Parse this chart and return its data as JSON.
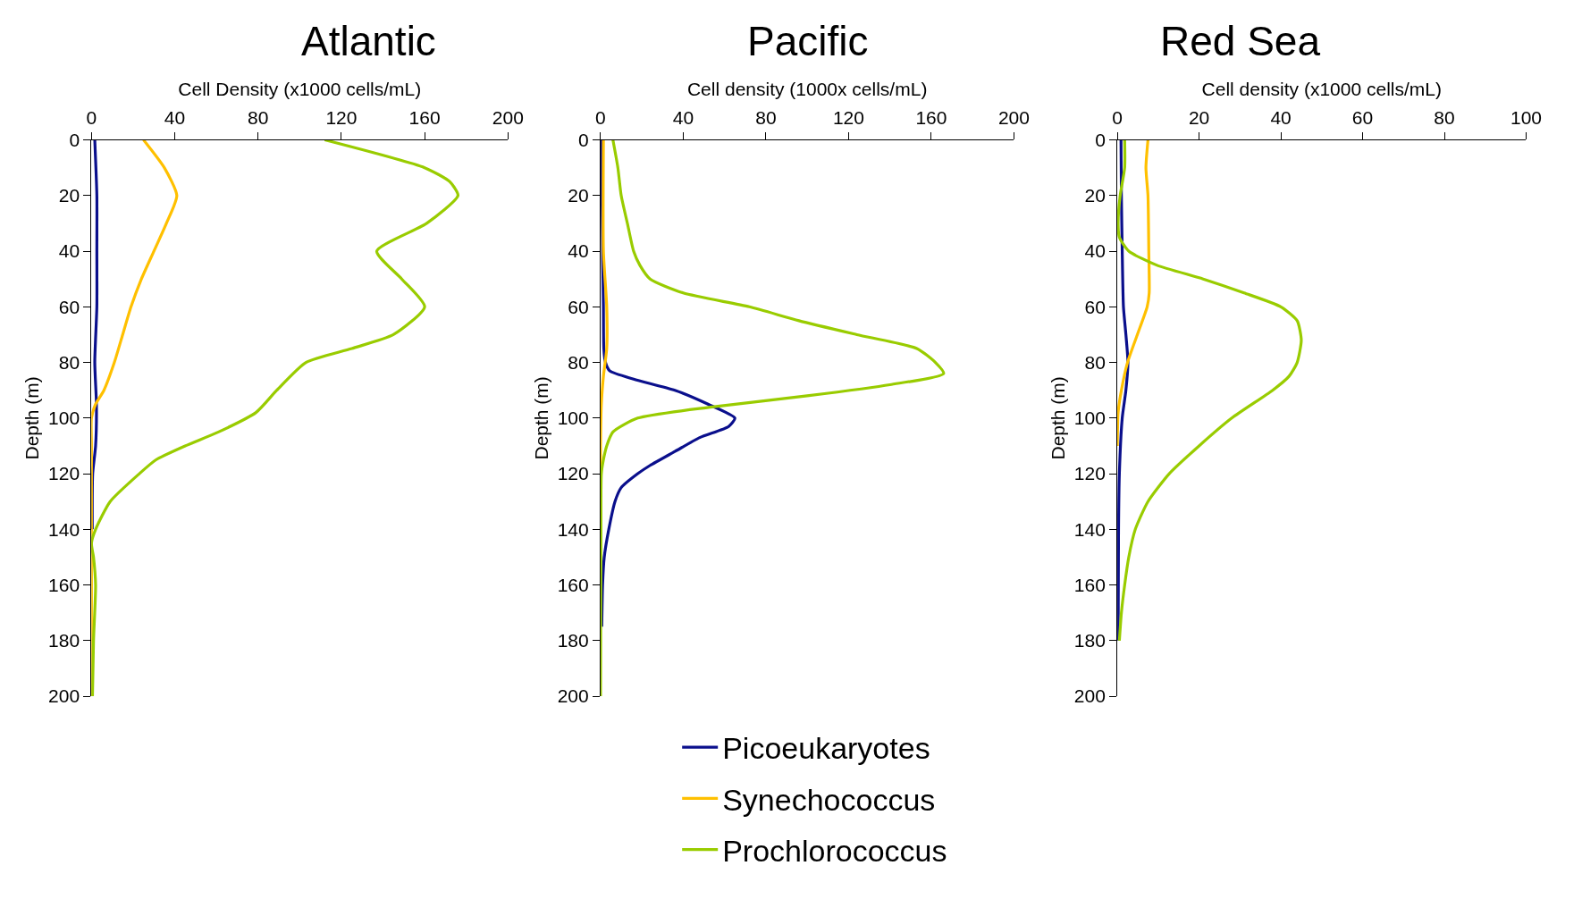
{
  "chart_data": [
    {
      "type": "line",
      "title": "Atlantic",
      "xlabel": "Cell Density (x1000 cells/mL)",
      "ylabel": "Depth (m)",
      "xlim": [
        0,
        200
      ],
      "xticks": [
        0,
        40,
        80,
        120,
        160,
        200
      ],
      "ylim": [
        200,
        0
      ],
      "yticks": [
        0,
        20,
        40,
        60,
        80,
        100,
        120,
        140,
        160,
        180,
        200
      ],
      "legend": "bottom right",
      "series": [
        {
          "name": "Picoeukaryotes",
          "color": "#0a0f8c",
          "x": [
            1.6,
            2.6,
            2.6,
            2.6,
            1.6,
            2.4,
            2,
            0.6,
            0.4
          ],
          "values": [
            0,
            20,
            40,
            60,
            80,
            95,
            110,
            120,
            140
          ]
        },
        {
          "name": "Synechococcus",
          "color": "#ffc000",
          "x": [
            25,
            35,
            41,
            36,
            30,
            24,
            19,
            15,
            11,
            6,
            2,
            0,
            0,
            0,
            0,
            0,
            0
          ],
          "values": [
            0,
            10,
            20,
            30,
            40,
            50,
            60,
            70,
            80,
            90,
            95,
            100,
            110,
            140,
            160,
            180,
            200
          ]
        },
        {
          "name": "Prochlorococcus",
          "color": "#99cc00",
          "x": [
            112,
            160,
            172,
            176,
            161,
            137,
            149,
            160,
            145,
            125,
            103,
            89,
            79,
            61,
            45,
            31,
            23,
            9,
            2,
            0,
            1,
            2,
            1,
            0.5
          ],
          "values": [
            0,
            10,
            15,
            20,
            30,
            40,
            50,
            60,
            70,
            75,
            80,
            90,
            98,
            105,
            110,
            115,
            120,
            130,
            140,
            145,
            150,
            160,
            180,
            200
          ]
        }
      ]
    },
    {
      "type": "line",
      "title": "Pacific",
      "xlabel": "Cell density (1000x cells/mL)",
      "ylabel": "Depth (m)",
      "xlim": [
        0,
        200
      ],
      "xticks": [
        0,
        40,
        80,
        120,
        160,
        200
      ],
      "ylim": [
        200,
        0
      ],
      "yticks": [
        0,
        20,
        40,
        60,
        80,
        100,
        120,
        140,
        160,
        180,
        200
      ],
      "series": [
        {
          "color": "#0a0f8c",
          "x": [
            0.4,
            1,
            1.4,
            1.6,
            2.4,
            4.4,
            16,
            36,
            52,
            65,
            62,
            48,
            36,
            24,
            18,
            10,
            7,
            4,
            1.8,
            1,
            0.6
          ],
          "values": [
            0,
            40,
            60,
            75,
            80,
            83,
            86,
            90,
            95,
            100,
            103,
            107,
            112,
            117,
            120,
            125,
            130,
            140,
            150,
            160,
            175
          ]
        },
        {
          "color": "#ffc000",
          "x": [
            1.4,
            1.4,
            3,
            3,
            1.4,
            0.4,
            0,
            0
          ],
          "values": [
            0,
            40,
            60,
            75,
            85,
            95,
            110,
            125
          ]
        },
        {
          "color": "#99cc00",
          "x": [
            6,
            8.4,
            10,
            13,
            16,
            19,
            24,
            40,
            72,
            96,
            124,
            153,
            162,
            166,
            140,
            100,
            54,
            18,
            6,
            3,
            1.4,
            0.4,
            0.2,
            0
          ],
          "values": [
            0,
            10,
            20,
            30,
            40,
            45,
            50,
            55,
            60,
            65,
            70,
            75,
            80,
            84,
            88,
            92,
            96,
            100,
            105,
            110,
            115,
            120,
            140,
            200
          ]
        }
      ]
    },
    {
      "type": "line",
      "title": "Red Sea",
      "xlabel": "Cell density (x1000 cells/mL)",
      "ylabel": "Depth (m)",
      "xlim": [
        0,
        100
      ],
      "xticks": [
        0,
        20,
        40,
        60,
        80,
        100
      ],
      "ylim": [
        200,
        0
      ],
      "yticks": [
        0,
        20,
        40,
        60,
        80,
        100,
        120,
        140,
        160,
        180,
        200
      ],
      "series": [
        {
          "color": "#0a0f8c",
          "x": [
            0.9,
            1,
            1.2,
            1.5,
            2.1,
            2.6,
            2.1,
            1.2,
            0.5,
            0.3,
            0.2
          ],
          "values": [
            0,
            20,
            40,
            60,
            70,
            80,
            90,
            100,
            120,
            140,
            180
          ]
        },
        {
          "color": "#ffc000",
          "x": [
            7.5,
            7,
            7.5,
            7.7,
            7.8,
            7.3,
            4.9,
            2.5,
            1,
            0.2,
            0
          ],
          "values": [
            0,
            10,
            20,
            40,
            55,
            60,
            70,
            80,
            90,
            98,
            110
          ]
        },
        {
          "color": "#99cc00",
          "x": [
            1.8,
            1.8,
            0.7,
            0.2,
            0.5,
            2.8,
            9.6,
            21,
            31,
            40,
            44,
            45,
            44,
            42,
            38,
            28,
            20,
            12.7,
            7.5,
            4.4,
            2.8,
            1.8,
            1,
            0.5
          ],
          "values": [
            0,
            10,
            20,
            30,
            35,
            40,
            45,
            50,
            55,
            60,
            65,
            72,
            80,
            85,
            90,
            100,
            110,
            120,
            130,
            140,
            150,
            160,
            170,
            180
          ]
        }
      ]
    }
  ]
}
